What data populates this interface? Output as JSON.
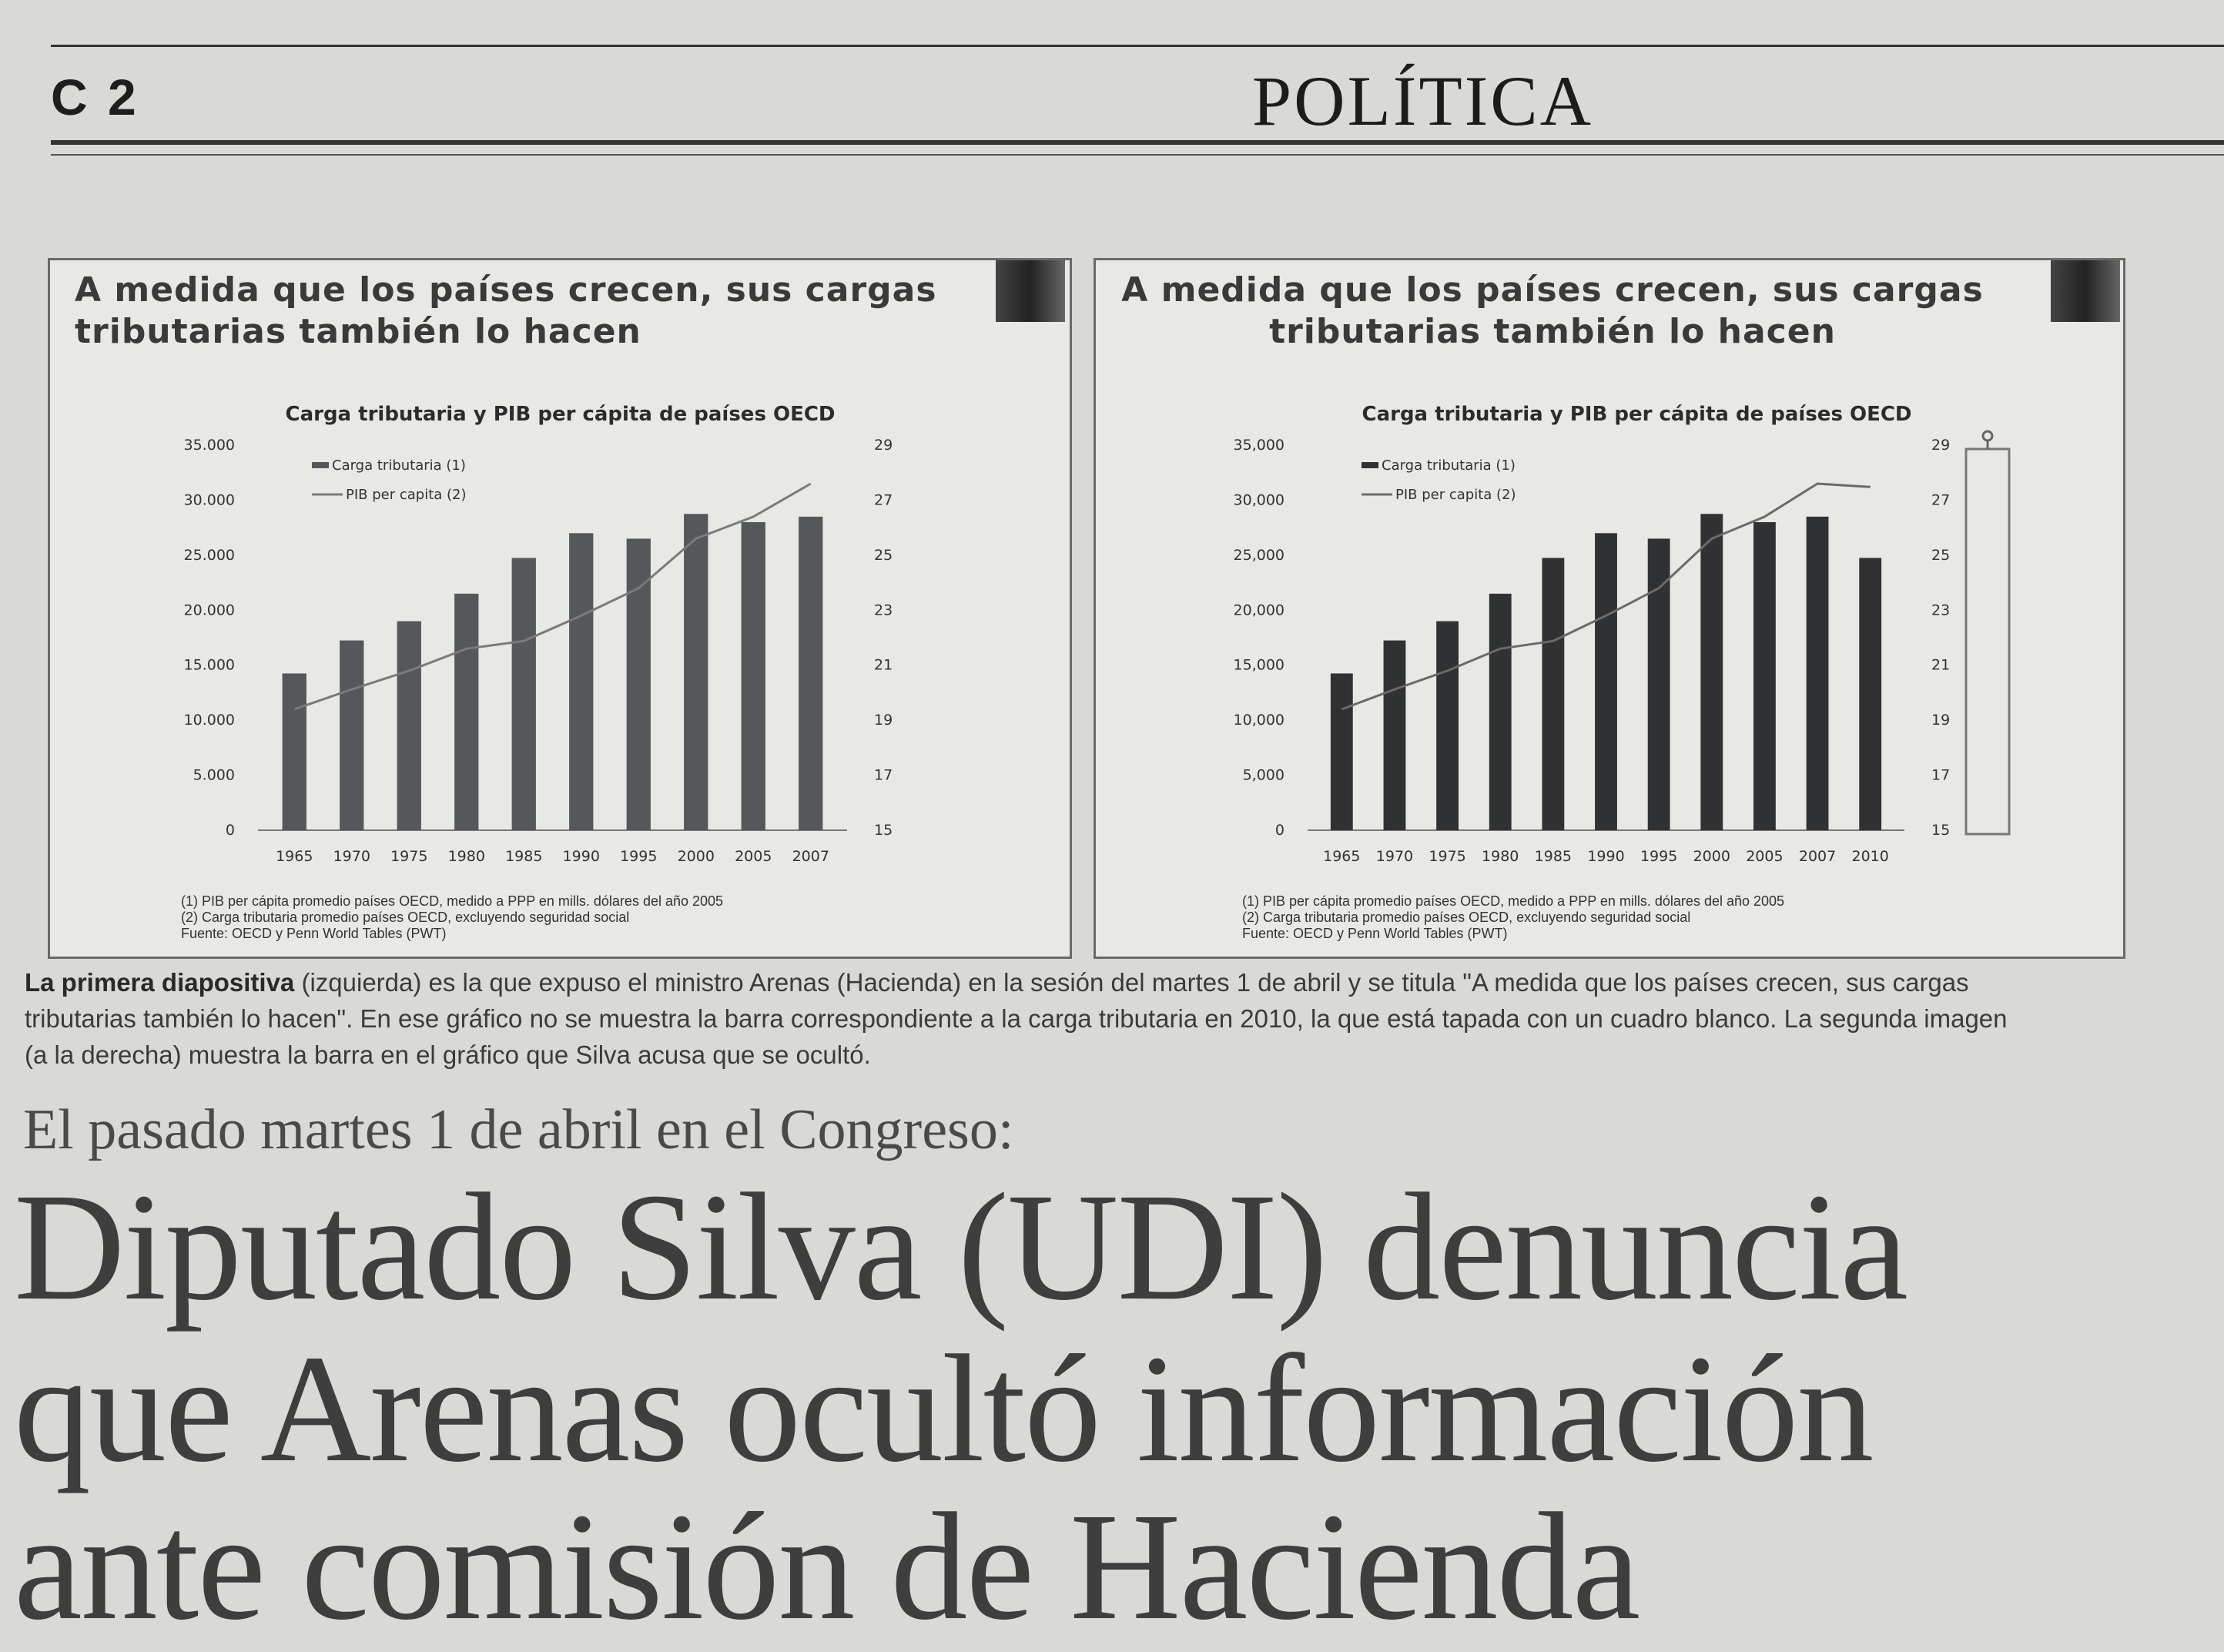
{
  "header": {
    "page_number": "C 2",
    "section": "POLÍTICA"
  },
  "slides": [
    {
      "heading_line1": "A medida que los países crecen, sus cargas",
      "heading_line2": "tributarias también lo hacen",
      "footnote1": "(1) PIB per cápita promedio países OECD, medido a PPP en mills. dólares del año 2005",
      "footnote2": "(2) Carga tributaria promedio países OECD, excluyendo seguridad social",
      "source": "Fuente: OECD y Penn World Tables (PWT)"
    },
    {
      "heading_line1": "A medida que los países crecen, sus cargas",
      "heading_line2": "tributarias también lo hacen",
      "footnote1": "(1) PIB per cápita promedio países OECD, medido a PPP en mills. dólares del año 2005",
      "footnote2": "(2) Carga tributaria promedio países OECD, excluyendo seguridad social",
      "source": "Fuente: OECD y Penn World Tables (PWT)"
    }
  ],
  "chart_data": [
    {
      "type": "bar",
      "title": "Carga tributaria y PIB per cápita de países OECD",
      "categories": [
        "1965",
        "1970",
        "1975",
        "1980",
        "1985",
        "1990",
        "1995",
        "2000",
        "2005",
        "2007"
      ],
      "series": [
        {
          "name": "Carga tributaria (1)",
          "axis": "right",
          "kind": "bar",
          "values": [
            20.7,
            21.9,
            22.6,
            23.6,
            24.9,
            25.8,
            25.6,
            26.5,
            26.2,
            26.4
          ]
        },
        {
          "name": "PIB per capita (2)",
          "axis": "left",
          "kind": "line",
          "values": [
            11000,
            12800,
            14500,
            16500,
            17200,
            19500,
            22000,
            26500,
            28500,
            31500
          ]
        }
      ],
      "ylim_left": [
        0,
        35000
      ],
      "ylim_right": [
        15,
        29
      ],
      "left_ticks": [
        "35.000",
        "30.000",
        "25.000",
        "20.000",
        "15.000",
        "10.000",
        "5.000",
        "0"
      ],
      "right_ticks": [
        "29",
        "27",
        "25",
        "23",
        "21",
        "19",
        "17",
        "15"
      ],
      "legend": "top-left",
      "bar_color": "#55585a",
      "line_color": "#7a7a7a"
    },
    {
      "type": "bar",
      "title": "Carga tributaria y PIB per cápita de países OECD",
      "categories": [
        "1965",
        "1970",
        "1975",
        "1980",
        "1985",
        "1990",
        "1995",
        "2000",
        "2005",
        "2007",
        "2010"
      ],
      "series": [
        {
          "name": "Carga tributaria (1)",
          "axis": "right",
          "kind": "bar",
          "values": [
            20.7,
            21.9,
            22.6,
            23.6,
            24.9,
            25.8,
            25.6,
            26.5,
            26.2,
            26.4,
            24.9
          ]
        },
        {
          "name": "PIB per capita (2)",
          "axis": "left",
          "kind": "line",
          "values": [
            11000,
            12800,
            14500,
            16500,
            17200,
            19500,
            22000,
            26500,
            28500,
            31500,
            31200
          ]
        }
      ],
      "ylim_left": [
        0,
        35000
      ],
      "ylim_right": [
        15,
        29
      ],
      "left_ticks": [
        "35,000",
        "30,000",
        "25,000",
        "20,000",
        "15,000",
        "10,000",
        "5,000",
        "0"
      ],
      "right_ticks": [
        "29",
        "27",
        "25",
        "23",
        "21",
        "19",
        "17",
        "15"
      ],
      "legend": "top-left",
      "bar_color": "#2f3133",
      "line_color": "#6a6a6a"
    }
  ],
  "caption": {
    "lead": "La primera diapositiva",
    "line1": " (izquierda) es la que expuso el ministro Arenas (Hacienda) en la sesión del martes 1 de abril y se titula \"A medida que los países crecen, sus cargas",
    "line2": "tributarias también lo hacen\". En ese gráfico no se muestra la barra correspondiente a la carga tributaria en 2010, la que está tapada con un cuadro blanco. La segunda imagen",
    "line3": "(a la derecha) muestra la barra en el gráfico que Silva acusa que se ocultó."
  },
  "article": {
    "kicker": "El pasado martes 1 de abril en el Congreso:",
    "headline_line1": "Diputado Silva (UDI) denuncia",
    "headline_line2": "que Arenas ocultó información",
    "headline_line3": "ante comisión de Hacienda"
  }
}
